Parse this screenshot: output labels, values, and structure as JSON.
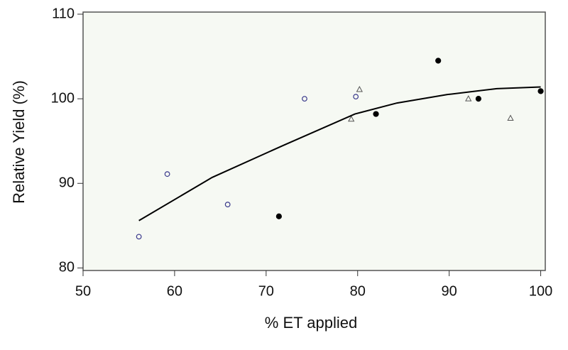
{
  "chart_data": {
    "type": "scatter",
    "x_label": "% ET applied",
    "y_label": "Relative Yield (%)",
    "xlim": [
      50,
      100.5
    ],
    "ylim": [
      79.7,
      110.25
    ],
    "xticks": [
      50,
      60,
      70,
      80,
      90,
      100
    ],
    "yticks": [
      80,
      90,
      100,
      110
    ],
    "series": [
      {
        "marker": "circle-open",
        "color": "#3a3a8c",
        "x": [
          56.1,
          59.2,
          65.8,
          74.2,
          79.8
        ],
        "values": [
          83.7,
          91.1,
          87.5,
          100.0,
          100.25
        ]
      },
      {
        "marker": "circle-filled",
        "color": "#000000",
        "x": [
          71.4,
          82.0,
          88.8,
          93.2,
          100.0
        ],
        "values": [
          86.1,
          98.2,
          104.5,
          100.0,
          100.9
        ]
      },
      {
        "marker": "triangle-open",
        "color": "#555555",
        "x": [
          79.3,
          80.2,
          92.1,
          96.7
        ],
        "values": [
          97.6,
          101.1,
          100.0,
          97.7
        ]
      },
      {
        "marker": "line",
        "color": "#000000",
        "x": [
          56.1,
          64.1,
          71.9,
          79.7,
          84.3,
          89.8,
          95.2,
          100.0
        ],
        "values": [
          85.6,
          90.7,
          94.5,
          98.2,
          99.5,
          100.5,
          101.2,
          101.4
        ]
      }
    ]
  }
}
